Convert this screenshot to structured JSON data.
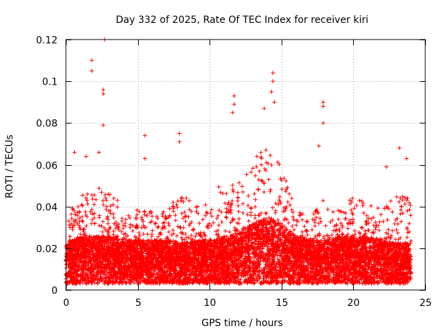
{
  "chart_data": {
    "type": "scatter",
    "title": "Day 332 of 2025, Rate Of TEC Index for receiver kiri",
    "xlabel": "GPS time / hours",
    "ylabel": "ROTI / TECUs",
    "xlim": [
      0,
      25
    ],
    "ylim": [
      0,
      0.12
    ],
    "xticks": [
      0,
      5,
      10,
      15,
      20,
      25
    ],
    "xtick_labels": [
      "0",
      "5",
      "10",
      "15",
      "20",
      "25"
    ],
    "yticks": [
      0,
      0.02,
      0.04,
      0.06,
      0.08,
      0.1,
      0.12
    ],
    "ytick_labels": [
      "0",
      "0.02",
      "0.04",
      "0.06",
      "0.08",
      "0.1",
      "0.12"
    ],
    "grid": true,
    "marker": "+",
    "marker_color": "#ff0000",
    "series": [
      {
        "name": "ROTI",
        "x_range": [
          0,
          24
        ],
        "baseline_band": [
          0.003,
          0.03
        ],
        "hourly_typical": [
          0.014,
          0.016,
          0.016,
          0.016,
          0.015,
          0.015,
          0.015,
          0.015,
          0.014,
          0.015,
          0.015,
          0.016,
          0.017,
          0.02,
          0.022,
          0.02,
          0.016,
          0.015,
          0.015,
          0.016,
          0.016,
          0.016,
          0.015,
          0.014
        ],
        "hourly_upper": [
          0.035,
          0.045,
          0.05,
          0.048,
          0.04,
          0.04,
          0.038,
          0.04,
          0.045,
          0.043,
          0.04,
          0.055,
          0.058,
          0.065,
          0.075,
          0.06,
          0.04,
          0.035,
          0.045,
          0.038,
          0.045,
          0.042,
          0.04,
          0.045
        ],
        "peak_points": [
          {
            "x": 1.8,
            "y": 0.11
          },
          {
            "x": 1.8,
            "y": 0.105
          },
          {
            "x": 2.7,
            "y": 0.12
          },
          {
            "x": 2.6,
            "y": 0.096
          },
          {
            "x": 2.6,
            "y": 0.094
          },
          {
            "x": 2.6,
            "y": 0.079
          },
          {
            "x": 5.5,
            "y": 0.074
          },
          {
            "x": 5.5,
            "y": 0.063
          },
          {
            "x": 7.9,
            "y": 0.075
          },
          {
            "x": 7.9,
            "y": 0.071
          },
          {
            "x": 11.7,
            "y": 0.093
          },
          {
            "x": 11.7,
            "y": 0.089
          },
          {
            "x": 11.6,
            "y": 0.085
          },
          {
            "x": 13.8,
            "y": 0.087
          },
          {
            "x": 14.4,
            "y": 0.104
          },
          {
            "x": 14.4,
            "y": 0.1
          },
          {
            "x": 14.3,
            "y": 0.095
          },
          {
            "x": 14.5,
            "y": 0.09
          },
          {
            "x": 17.9,
            "y": 0.09
          },
          {
            "x": 17.9,
            "y": 0.088
          },
          {
            "x": 17.9,
            "y": 0.08
          },
          {
            "x": 17.6,
            "y": 0.069
          },
          {
            "x": 23.2,
            "y": 0.068
          },
          {
            "x": 23.7,
            "y": 0.063
          },
          {
            "x": 0.6,
            "y": 0.066
          },
          {
            "x": 1.4,
            "y": 0.064
          },
          {
            "x": 2.3,
            "y": 0.066
          },
          {
            "x": 22.3,
            "y": 0.059
          }
        ]
      }
    ]
  }
}
